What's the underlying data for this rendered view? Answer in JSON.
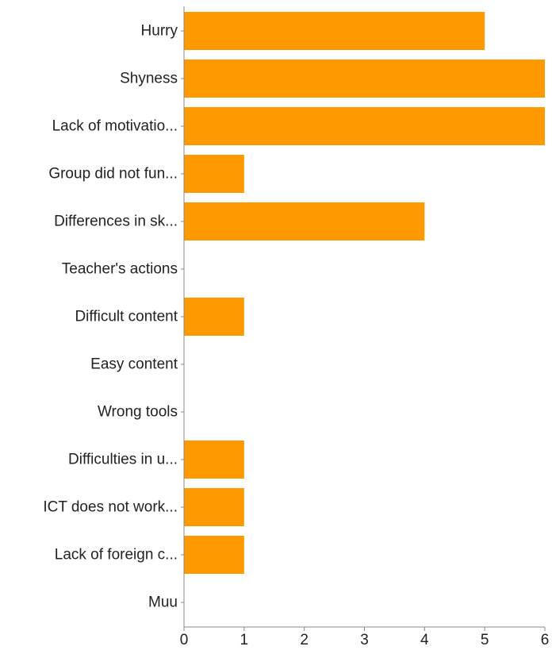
{
  "chart_data": {
    "type": "bar",
    "orientation": "horizontal",
    "categories": [
      "Hurry",
      "Shyness",
      "Lack of motivatio...",
      "Group did not fun...",
      "Differences in sk...",
      "Teacher's actions",
      "Difficult content",
      "Easy content",
      "Wrong tools",
      "Difficulties in u...",
      "ICT does not work...",
      "Lack of foreign c...",
      "Muu"
    ],
    "values": [
      5,
      6,
      6,
      1,
      4,
      0,
      1,
      0,
      0,
      1,
      1,
      1,
      0
    ],
    "xlim": [
      0,
      6
    ],
    "x_ticks": [
      "0",
      "1",
      "2",
      "3",
      "4",
      "5",
      "6"
    ],
    "title": "",
    "xlabel": "",
    "ylabel": "",
    "grid": false,
    "colors": {
      "bar": "#FF9900",
      "axis": "#888888",
      "text": "#222222"
    }
  }
}
